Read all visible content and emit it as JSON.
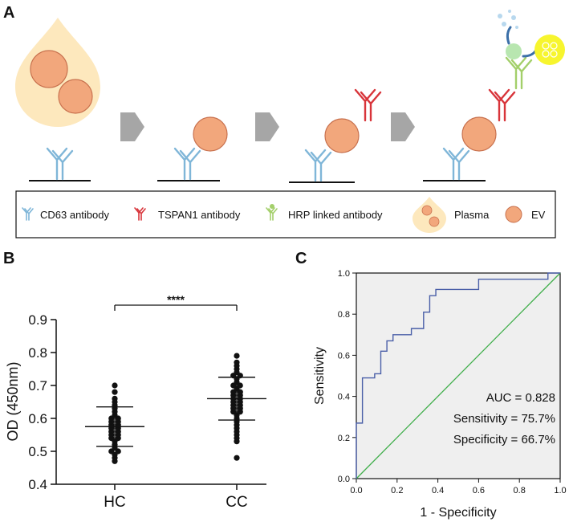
{
  "panels": {
    "a": "A",
    "b": "B",
    "c": "C"
  },
  "legend": {
    "cd63": "CD63 antibody",
    "tspan1": "TSPAN1 antibody",
    "hrp": "HRP linked antibody",
    "plasma": "Plasma",
    "ev": "EV"
  },
  "colors": {
    "cd63": "#7fb6d8",
    "tspan1": "#d8343a",
    "hrp": "#a3cf6a",
    "ev_fill": "#f2a77c",
    "ev_stroke": "#c8714e",
    "plasma_fill": "#fde8bd",
    "arrow": "#a6a6a6",
    "roc_line": "#4a5fa8",
    "diag_line": "#3fae4a",
    "roc_bg": "#efefef"
  },
  "chart_data": [
    {
      "type": "scatter",
      "title": "",
      "xlabel": "",
      "ylabel": "OD (450nm)",
      "categories": [
        "HC",
        "CC"
      ],
      "ylim": [
        0.4,
        0.9
      ],
      "yticks": [
        "0.4",
        "0.5",
        "0.6",
        "0.7",
        "0.8",
        "0.9"
      ],
      "significance": "****",
      "groups": [
        {
          "name": "HC",
          "mean": 0.575,
          "sd_low": 0.515,
          "sd_high": 0.635,
          "points": [
            0.7,
            0.68,
            0.66,
            0.65,
            0.64,
            0.63,
            0.62,
            0.61,
            0.6,
            0.6,
            0.59,
            0.59,
            0.58,
            0.58,
            0.57,
            0.57,
            0.56,
            0.56,
            0.55,
            0.55,
            0.54,
            0.54,
            0.53,
            0.52,
            0.51,
            0.5,
            0.5,
            0.49,
            0.48,
            0.47
          ]
        },
        {
          "name": "CC",
          "mean": 0.66,
          "sd_low": 0.595,
          "sd_high": 0.725,
          "points": [
            0.79,
            0.77,
            0.76,
            0.75,
            0.74,
            0.73,
            0.73,
            0.72,
            0.71,
            0.7,
            0.7,
            0.69,
            0.68,
            0.68,
            0.67,
            0.67,
            0.66,
            0.66,
            0.65,
            0.65,
            0.64,
            0.64,
            0.63,
            0.63,
            0.62,
            0.62,
            0.61,
            0.6,
            0.59,
            0.58,
            0.57,
            0.56,
            0.55,
            0.54,
            0.53,
            0.48
          ]
        }
      ]
    },
    {
      "type": "line",
      "title": "",
      "xlabel": "1 - Specificity",
      "ylabel": "Sensitivity",
      "xlim": [
        0,
        1.0
      ],
      "ylim": [
        0,
        1.0
      ],
      "xticks": [
        "0.0",
        "0.2",
        "0.4",
        "0.6",
        "0.8",
        "1.0"
      ],
      "yticks": [
        "0.0",
        "0.2",
        "0.4",
        "0.6",
        "0.8",
        "1.0"
      ],
      "roc": [
        [
          0,
          0
        ],
        [
          0,
          0.27
        ],
        [
          0.03,
          0.27
        ],
        [
          0.03,
          0.49
        ],
        [
          0.09,
          0.49
        ],
        [
          0.09,
          0.51
        ],
        [
          0.12,
          0.51
        ],
        [
          0.12,
          0.62
        ],
        [
          0.15,
          0.62
        ],
        [
          0.15,
          0.67
        ],
        [
          0.18,
          0.67
        ],
        [
          0.18,
          0.7
        ],
        [
          0.27,
          0.7
        ],
        [
          0.27,
          0.73
        ],
        [
          0.33,
          0.73
        ],
        [
          0.33,
          0.81
        ],
        [
          0.36,
          0.81
        ],
        [
          0.36,
          0.89
        ],
        [
          0.39,
          0.89
        ],
        [
          0.39,
          0.92
        ],
        [
          0.6,
          0.92
        ],
        [
          0.6,
          0.97
        ],
        [
          0.94,
          0.97
        ],
        [
          0.94,
          1.0
        ],
        [
          1.0,
          1.0
        ]
      ],
      "diagonal": [
        [
          0,
          0
        ],
        [
          1,
          1
        ]
      ],
      "annotations": {
        "auc": "AUC = 0.828",
        "sensitivity": "Sensitivity = 75.7%",
        "specificity": "Specificity = 66.7%"
      }
    }
  ]
}
